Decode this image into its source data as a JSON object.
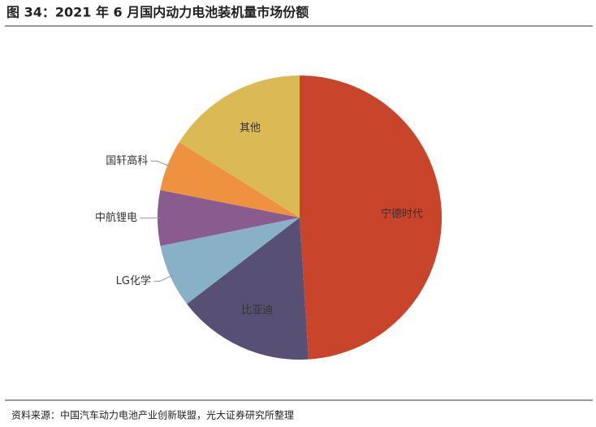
{
  "chart_data": {
    "type": "pie",
    "title": "图 34：2021 年 6 月国内动力电池装机量市场份额",
    "categories": [
      "宁德时代",
      "比亚迪",
      "LG化学",
      "中航锂电",
      "国轩高科",
      "其他"
    ],
    "values": [
      49,
      15.6,
      7.2,
      6.3,
      5.8,
      16.1
    ],
    "colors": [
      "#c8442a",
      "#575074",
      "#88b0c6",
      "#8a5b8e",
      "#ef9240",
      "#dbb955"
    ],
    "source": "资料来源：中国汽车动力电池产业创新联盟，光大证券研究所整理"
  }
}
